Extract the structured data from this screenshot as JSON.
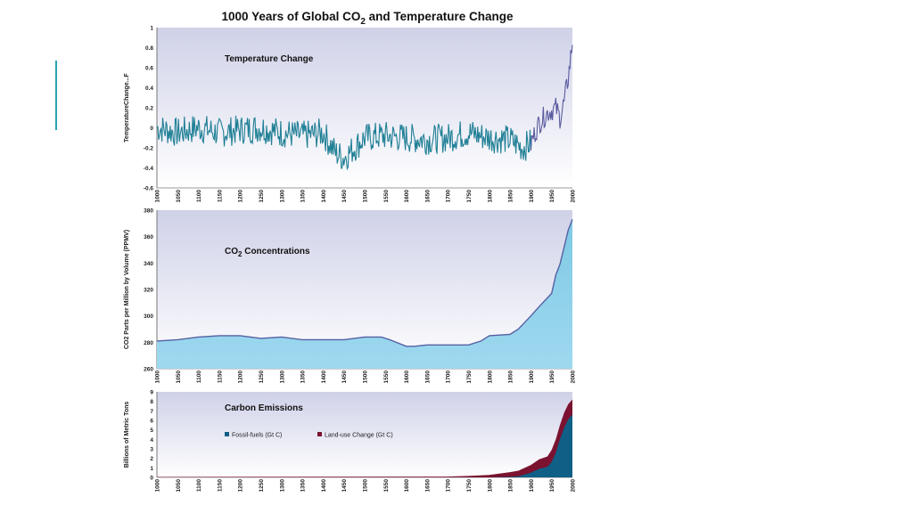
{
  "title": "1000 Years of Global CO",
  "title_sub": "2",
  "title_rest": " and Temperature Change",
  "colors": {
    "accent": "#2aa3b5",
    "temp_line": "#1f7f95",
    "temp_recent": "#5a5b9f",
    "co2_fill": "#7fc9e4",
    "co2_line": "#5560a3",
    "fossil": "#0f5f86",
    "landuse": "#7a1230",
    "bg_top": "#cfd1e8",
    "bg_bottom": "#ffffff"
  },
  "chart_data": [
    {
      "type": "line",
      "title": "Temperature Change",
      "ylabel": "TemperatureChange...F",
      "ylim": [
        -0.6,
        1
      ],
      "yticks": [
        "1",
        "0.8",
        "0.6",
        "0.4",
        "0.2",
        "0",
        "-0.2",
        "-0.4",
        "-0.6"
      ],
      "xlim": [
        1000,
        2000
      ],
      "xticks": [
        "1000",
        "1050",
        "1100",
        "1150",
        "1200",
        "1250",
        "1300",
        "1350",
        "1400",
        "1450",
        "1500",
        "1550",
        "1600",
        "1650",
        "1700",
        "1750",
        "1800",
        "1850",
        "1900",
        "1950",
        "2000"
      ],
      "x": [
        1000,
        1050,
        1100,
        1150,
        1200,
        1250,
        1300,
        1350,
        1400,
        1430,
        1450,
        1500,
        1550,
        1600,
        1650,
        1700,
        1750,
        1800,
        1850,
        1880,
        1900,
        1920,
        1940,
        1960,
        1970,
        1980,
        1990,
        2000
      ],
      "values": [
        0.0,
        -0.05,
        0.0,
        -0.05,
        -0.02,
        0.0,
        -0.05,
        -0.08,
        -0.05,
        -0.25,
        -0.3,
        -0.1,
        -0.08,
        -0.1,
        -0.12,
        -0.1,
        -0.05,
        -0.1,
        -0.12,
        -0.2,
        -0.15,
        0.05,
        0.15,
        0.2,
        0.1,
        0.25,
        0.5,
        0.85
      ]
    },
    {
      "type": "area",
      "title": "CO",
      "title_sub": "2",
      "title_rest": " Concentrations",
      "ylabel": "CO2 Parts per Million by Volume (PPMV)",
      "ylim": [
        260,
        380
      ],
      "yticks": [
        "380",
        "360",
        "340",
        "320",
        "300",
        "280",
        "260"
      ],
      "xlim": [
        1000,
        2000
      ],
      "xticks": [
        "1000",
        "1050",
        "1100",
        "1150",
        "1200",
        "1250",
        "1300",
        "1350",
        "1400",
        "1450",
        "1500",
        "1550",
        "1600",
        "1650",
        "1700",
        "1750",
        "1800",
        "1850",
        "1900",
        "1950",
        "2000"
      ],
      "x": [
        1000,
        1050,
        1100,
        1150,
        1200,
        1250,
        1300,
        1350,
        1400,
        1450,
        1500,
        1540,
        1560,
        1600,
        1620,
        1650,
        1700,
        1750,
        1780,
        1800,
        1850,
        1870,
        1900,
        1920,
        1950,
        1960,
        1970,
        1980,
        1990,
        2000
      ],
      "values": [
        281,
        282,
        284,
        285,
        285,
        283,
        284,
        282,
        282,
        282,
        284,
        284,
        282,
        277,
        277,
        278,
        278,
        278,
        281,
        285,
        286,
        290,
        300,
        307,
        317,
        331,
        339,
        352,
        365,
        373
      ]
    },
    {
      "type": "area",
      "title": "Carbon Emissions",
      "ylabel": "Billions of Metric Tons",
      "ylim": [
        0,
        9
      ],
      "yticks": [
        "9",
        "8",
        "7",
        "6",
        "5",
        "4",
        "3",
        "2",
        "1",
        "0"
      ],
      "xlim": [
        1000,
        2000
      ],
      "xticks": [
        "1000",
        "1050",
        "1100",
        "1150",
        "1200",
        "1250",
        "1300",
        "1350",
        "1400",
        "1450",
        "1500",
        "1550",
        "1600",
        "1650",
        "1700",
        "1750",
        "1800",
        "1850",
        "1900",
        "1950",
        "2000"
      ],
      "legend": [
        "Fossil-fuels (Gt C)",
        "Land-use Change (Gt C)"
      ],
      "legend_placement": "top-center",
      "x": [
        1000,
        1700,
        1750,
        1800,
        1850,
        1870,
        1900,
        1920,
        1940,
        1950,
        1960,
        1970,
        1980,
        1990,
        2000
      ],
      "series": [
        {
          "name": "Fossil-fuels (Gt C)",
          "values": [
            0,
            0,
            0,
            0,
            0.05,
            0.1,
            0.5,
            0.9,
            1.1,
            1.6,
            2.6,
            4.0,
            5.2,
            6.1,
            6.6
          ]
        },
        {
          "name": "Land-use Change (Gt C)",
          "values": [
            0.05,
            0.08,
            0.15,
            0.25,
            0.5,
            0.6,
            0.8,
            1.0,
            1.1,
            1.3,
            1.4,
            1.5,
            1.6,
            1.6,
            1.6
          ]
        }
      ]
    }
  ]
}
